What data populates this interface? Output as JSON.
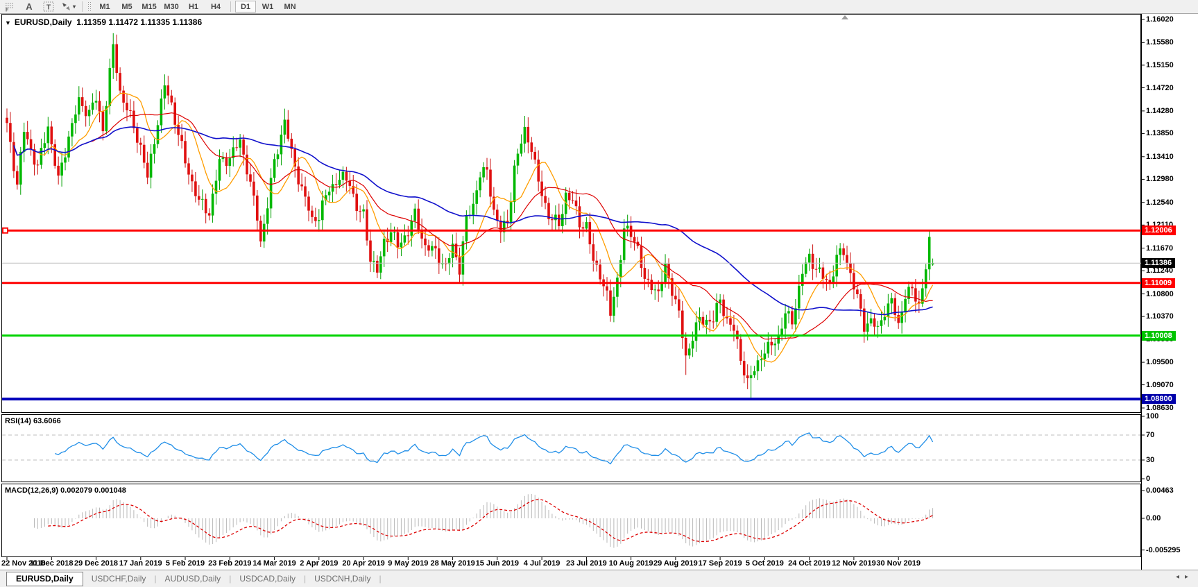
{
  "toolbar": {
    "tools": [
      {
        "name": "fibonacci-retracement",
        "glyph": "F"
      },
      {
        "name": "text",
        "glyph": "A"
      },
      {
        "name": "text-label",
        "glyph": "T"
      },
      {
        "name": "arrows",
        "glyph": "arrows"
      }
    ],
    "timeframes": [
      "M1",
      "M5",
      "M15",
      "M30",
      "H1",
      "H4",
      "D1",
      "W1",
      "MN"
    ],
    "active_timeframe": "D1"
  },
  "header": {
    "symbol_title": "EURUSD,Daily",
    "ohlc_text": "1.11359 1.11472 1.11335 1.11386"
  },
  "tabs": {
    "items": [
      "EURUSD,Daily",
      "USDCHF,Daily",
      "AUDUSD,Daily",
      "USDCAD,Daily",
      "USDCNH,Daily"
    ],
    "active": "EURUSD,Daily",
    "scroll_left_icon": "◂",
    "scroll_right_icon": "▸"
  },
  "chart_data": {
    "type": "candlestick",
    "symbol": "EURUSD",
    "timeframe": "Daily",
    "last_ohlc": {
      "open": 1.11359,
      "high": 1.11472,
      "low": 1.11335,
      "close": 1.11386
    },
    "bars": 271,
    "colors": {
      "up": "#00b800",
      "down": "#e01010",
      "wick_up": "#00a000",
      "wick_down": "#cc0f0f",
      "ma_fast": "#ff9d00",
      "ma_mid": "#dd0000",
      "ma_slow": "#1111cc",
      "current_line": "#c0c0c0",
      "current_badge": "#000000"
    },
    "y_axis_ticks": [
      "1.16020",
      "1.15580",
      "1.15150",
      "1.14720",
      "1.14280",
      "1.13850",
      "1.13410",
      "1.12980",
      "1.12540",
      "1.12110",
      "1.11670",
      "1.11240",
      "1.10800",
      "1.10370",
      "1.09930",
      "1.09500",
      "1.09070",
      "1.08630"
    ],
    "ylim": [
      1.085375,
      1.161256
    ],
    "x_axis_labels": [
      "22 Nov 2018",
      "11 Dec 2018",
      "29 Dec 2018",
      "17 Jan 2019",
      "5 Feb 2019",
      "23 Feb 2019",
      "14 Mar 2019",
      "2 Apr 2019",
      "20 Apr 2019",
      "9 May 2019",
      "28 May 2019",
      "15 Jun 2019",
      "4 Jul 2019",
      "23 Jul 2019",
      "10 Aug 2019",
      "29 Aug 2019",
      "17 Sep 2019",
      "5 Oct 2019",
      "24 Oct 2019",
      "12 Nov 2019",
      "30 Nov 2019"
    ],
    "label_every_bars": 13,
    "levels": [
      {
        "price": 1.12006,
        "label": "1.12006",
        "color": "#ff0000",
        "width": 3,
        "badge_bg": "#ff0000",
        "selected": true
      },
      {
        "price": 1.11009,
        "label": "1.11009",
        "color": "#ff0000",
        "width": 3,
        "badge_bg": "#ff0000",
        "selected": false
      },
      {
        "price": 1.10008,
        "label": "1.10008",
        "color": "#00d300",
        "width": 3,
        "badge_bg": "#00c400",
        "selected": false
      },
      {
        "price": 1.088,
        "label": "1.08800",
        "color": "#0000bb",
        "width": 4,
        "badge_bg": "#0000aa",
        "selected": false
      }
    ],
    "current_price": {
      "value": 1.11386,
      "label": "1.11386"
    },
    "moving_averages": [
      {
        "period": 10,
        "color": "#ff9d00",
        "width": 1.3
      },
      {
        "period": 25,
        "color": "#dd0000",
        "width": 1.2
      },
      {
        "period": 60,
        "color": "#1111cc",
        "width": 1.6
      }
    ],
    "close_anchors": [
      [
        0,
        1.14
      ],
      [
        3,
        1.129
      ],
      [
        5,
        1.139
      ],
      [
        9,
        1.132
      ],
      [
        12,
        1.14
      ],
      [
        15,
        1.1295
      ],
      [
        18,
        1.138
      ],
      [
        21,
        1.1445
      ],
      [
        24,
        1.1425
      ],
      [
        26,
        1.145
      ],
      [
        28,
        1.1395
      ],
      [
        31,
        1.155
      ],
      [
        33,
        1.1465
      ],
      [
        36,
        1.1415
      ],
      [
        39,
        1.136
      ],
      [
        41,
        1.13
      ],
      [
        44,
        1.141
      ],
      [
        46,
        1.1475
      ],
      [
        48,
        1.144
      ],
      [
        52,
        1.133
      ],
      [
        56,
        1.1255
      ],
      [
        59,
        1.1235
      ],
      [
        62,
        1.133
      ],
      [
        65,
        1.134
      ],
      [
        68,
        1.137
      ],
      [
        70,
        1.132
      ],
      [
        73,
        1.1225
      ],
      [
        74,
        1.118
      ],
      [
        76,
        1.125
      ],
      [
        78,
        1.133
      ],
      [
        81,
        1.141
      ],
      [
        83,
        1.1345
      ],
      [
        86,
        1.128
      ],
      [
        89,
        1.122
      ],
      [
        91,
        1.123
      ],
      [
        94,
        1.128
      ],
      [
        97,
        1.13
      ],
      [
        100,
        1.1295
      ],
      [
        102,
        1.124
      ],
      [
        104,
        1.123
      ],
      [
        106,
        1.115
      ],
      [
        108,
        1.112
      ],
      [
        110,
        1.118
      ],
      [
        112,
        1.12
      ],
      [
        114,
        1.117
      ],
      [
        117,
        1.12
      ],
      [
        119,
        1.123
      ],
      [
        122,
        1.117
      ],
      [
        125,
        1.116
      ],
      [
        128,
        1.113
      ],
      [
        130,
        1.117
      ],
      [
        132,
        1.113
      ],
      [
        134,
        1.122
      ],
      [
        136,
        1.125
      ],
      [
        138,
        1.131
      ],
      [
        140,
        1.131
      ],
      [
        142,
        1.124
      ],
      [
        144,
        1.12
      ],
      [
        146,
        1.1215
      ],
      [
        148,
        1.132
      ],
      [
        151,
        1.139
      ],
      [
        153,
        1.136
      ],
      [
        155,
        1.129
      ],
      [
        158,
        1.123
      ],
      [
        161,
        1.121
      ],
      [
        163,
        1.127
      ],
      [
        165,
        1.1255
      ],
      [
        167,
        1.1215
      ],
      [
        169,
        1.121
      ],
      [
        171,
        1.114
      ],
      [
        173,
        1.112
      ],
      [
        175,
        1.1075
      ],
      [
        176,
        1.104
      ],
      [
        178,
        1.111
      ],
      [
        180,
        1.12
      ],
      [
        182,
        1.1195
      ],
      [
        184,
        1.117
      ],
      [
        186,
        1.11
      ],
      [
        188,
        1.11
      ],
      [
        190,
        1.108
      ],
      [
        192,
        1.113
      ],
      [
        194,
        1.109
      ],
      [
        196,
        1.104
      ],
      [
        198,
        1.096
      ],
      [
        200,
        1.1
      ],
      [
        202,
        1.103
      ],
      [
        204,
        1.103
      ],
      [
        206,
        1.103
      ],
      [
        208,
        1.107
      ],
      [
        210,
        1.103
      ],
      [
        212,
        1.101
      ],
      [
        214,
        1.096
      ],
      [
        216,
        1.091
      ],
      [
        218,
        1.0935
      ],
      [
        220,
        1.0965
      ],
      [
        222,
        1.0975
      ],
      [
        225,
        1.1
      ],
      [
        227,
        1.104
      ],
      [
        229,
        1.103
      ],
      [
        232,
        1.112
      ],
      [
        234,
        1.115
      ],
      [
        236,
        1.113
      ],
      [
        238,
        1.111
      ],
      [
        240,
        1.11
      ],
      [
        242,
        1.115
      ],
      [
        244,
        1.116
      ],
      [
        246,
        1.112
      ],
      [
        248,
        1.107
      ],
      [
        250,
        1.102
      ],
      [
        252,
        1.103
      ],
      [
        254,
        1.101
      ],
      [
        256,
        1.105
      ],
      [
        258,
        1.1065
      ],
      [
        260,
        1.102
      ],
      [
        262,
        1.108
      ],
      [
        264,
        1.1085
      ],
      [
        266,
        1.106
      ],
      [
        268,
        1.113
      ],
      [
        269,
        1.1175
      ],
      [
        270,
        1.11386
      ]
    ],
    "wick_overrides": [
      [
        31,
        "h",
        1.1572
      ],
      [
        59,
        "l",
        1.1234
      ],
      [
        108,
        "l",
        1.111
      ],
      [
        176,
        "l",
        1.1027
      ],
      [
        198,
        "l",
        1.0926
      ],
      [
        217,
        "l",
        1.088
      ],
      [
        269,
        "h",
        1.1201
      ]
    ],
    "rsi": {
      "label": "RSI(14) 63.6066",
      "period": 14,
      "value": "63.6066",
      "color": "#1f8ee8",
      "levels": [
        70,
        30
      ],
      "ticks": [
        "100",
        "70",
        "30",
        "0"
      ],
      "range": [
        0,
        100
      ]
    },
    "macd": {
      "label": "MACD(12,26,9) 0.002079 0.001048",
      "fast": 12,
      "slow": 26,
      "signal": 9,
      "values": "0.002079 0.001048",
      "hist_color": "#b8b8b8",
      "signal_color": "#dd0000",
      "ticks": [
        "0.00463",
        "0.00",
        "-0.005295"
      ]
    }
  }
}
